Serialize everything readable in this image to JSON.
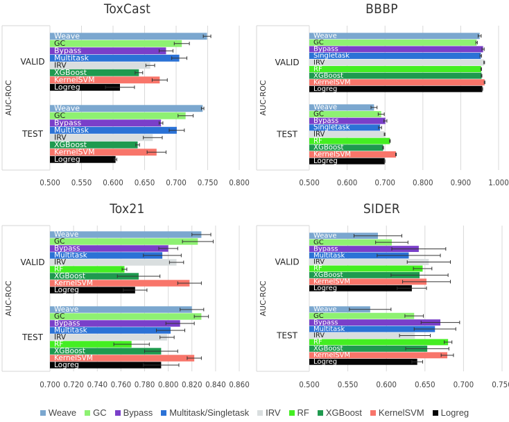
{
  "legend": [
    {
      "label": "Weave",
      "color": "#7ba7cf"
    },
    {
      "label": "GC",
      "color": "#8ef172"
    },
    {
      "label": "Bypass",
      "color": "#7a3fc9"
    },
    {
      "label": "Multitask/Singletask",
      "color": "#2b72d6"
    },
    {
      "label": "IRV",
      "color": "#d9dedf"
    },
    {
      "label": "RF",
      "color": "#44ee22"
    },
    {
      "label": "XGBoost",
      "color": "#1f9a4f"
    },
    {
      "label": "KernelSVM",
      "color": "#f8756a"
    },
    {
      "label": "Logreg",
      "color": "#050505"
    }
  ],
  "chart_data": [
    {
      "type": "bar",
      "orientation": "horizontal",
      "title": "ToxCast",
      "ylabel": "AUC-ROC",
      "xlabel": "",
      "xlim": [
        0.5,
        0.8
      ],
      "xticks": [
        "0.500",
        "0.550",
        "0.600",
        "0.650",
        "0.700",
        "0.750",
        "0.800"
      ],
      "grid": true,
      "groups": [
        {
          "name": "VALID",
          "bars": [
            {
              "label": "Weave",
              "value": 0.749,
              "error": 0.006
            },
            {
              "label": "GC",
              "value": 0.709,
              "error": 0.012
            },
            {
              "label": "Bypass",
              "value": 0.684,
              "error": 0.011
            },
            {
              "label": "Multitask",
              "value": 0.705,
              "error": 0.012
            },
            {
              "label": "IRV",
              "value": 0.659,
              "error": 0.007
            },
            {
              "label": "XGBoost",
              "value": 0.641,
              "error": 0.006
            },
            {
              "label": "KernelSVM",
              "value": 0.674,
              "error": 0.012
            },
            {
              "label": "Logreg",
              "value": 0.611,
              "error": 0.023
            }
          ]
        },
        {
          "name": "TEST",
          "bars": [
            {
              "label": "Weave",
              "value": 0.742,
              "error": 0.002
            },
            {
              "label": "GC",
              "value": 0.715,
              "error": 0.012
            },
            {
              "label": "Bypass",
              "value": 0.676,
              "error": 0.003
            },
            {
              "label": "Multitask",
              "value": 0.701,
              "error": 0.012
            },
            {
              "label": "IRV",
              "value": 0.663,
              "error": 0.015
            },
            {
              "label": "XGBoost",
              "value": 0.639,
              "error": 0.003
            },
            {
              "label": "KernelSVM",
              "value": 0.669,
              "error": 0.015
            },
            {
              "label": "Logreg",
              "value": 0.604,
              "error": 0.002
            }
          ]
        }
      ]
    },
    {
      "type": "bar",
      "orientation": "horizontal",
      "title": "BBBP",
      "ylabel": "AUC-ROC",
      "xlabel": "",
      "xlim": [
        0.5,
        1.0
      ],
      "xticks": [
        "0.500",
        "0.600",
        "0.700",
        "0.800",
        "0.900",
        "1.000"
      ],
      "grid": true,
      "groups": [
        {
          "name": "VALID",
          "bars": [
            {
              "label": "Weave",
              "value": 0.95,
              "error": 0.004
            },
            {
              "label": "GC",
              "value": 0.942,
              "error": 0.002
            },
            {
              "label": "Bypass",
              "value": 0.959,
              "error": 0.003
            },
            {
              "label": "Singletask",
              "value": 0.953,
              "error": 0.002
            },
            {
              "label": "IRV",
              "value": 0.962,
              "error": 0.001
            },
            {
              "label": "RF",
              "value": 0.954,
              "error": 0.001
            },
            {
              "label": "XGBoost",
              "value": 0.955,
              "error": 0.001
            },
            {
              "label": "KernelSVM",
              "value": 0.963,
              "error": 0.001
            },
            {
              "label": "Logreg",
              "value": 0.957,
              "error": 0.001
            }
          ]
        },
        {
          "name": "TEST",
          "bars": [
            {
              "label": "Weave",
              "value": 0.671,
              "error": 0.008
            },
            {
              "label": "GC",
              "value": 0.69,
              "error": 0.008
            },
            {
              "label": "Bypass",
              "value": 0.701,
              "error": 0.004
            },
            {
              "label": "Singletask",
              "value": 0.687,
              "error": 0.004
            },
            {
              "label": "IRV",
              "value": 0.699,
              "error": 0.001
            },
            {
              "label": "RF",
              "value": 0.713,
              "error": 0.001
            },
            {
              "label": "XGBoost",
              "value": 0.695,
              "error": 0.001
            },
            {
              "label": "KernelSVM",
              "value": 0.729,
              "error": 0.001
            },
            {
              "label": "Logreg",
              "value": 0.699,
              "error": 0.001
            }
          ]
        }
      ]
    },
    {
      "type": "bar",
      "orientation": "horizontal",
      "title": "Tox21",
      "ylabel": "AUC-ROC",
      "xlabel": "",
      "xlim": [
        0.7,
        0.86
      ],
      "xticks": [
        "0.700",
        "0.720",
        "0.740",
        "0.760",
        "0.780",
        "0.800",
        "0.820",
        "0.840",
        "0.860"
      ],
      "grid": true,
      "groups": [
        {
          "name": "VALID",
          "bars": [
            {
              "label": "Weave",
              "value": 0.828,
              "error": 0.008
            },
            {
              "label": "GC",
              "value": 0.825,
              "error": 0.013
            },
            {
              "label": "Bypass",
              "value": 0.8,
              "error": 0.008
            },
            {
              "label": "Multitask",
              "value": 0.795,
              "error": 0.016
            },
            {
              "label": "IRV",
              "value": 0.807,
              "error": 0.006
            },
            {
              "label": "RF",
              "value": 0.763,
              "error": 0.002
            },
            {
              "label": "XGBoost",
              "value": 0.775,
              "error": 0.018
            },
            {
              "label": "KernelSVM",
              "value": 0.818,
              "error": 0.01
            },
            {
              "label": "Logreg",
              "value": 0.772,
              "error": 0.01
            }
          ]
        },
        {
          "name": "TEST",
          "bars": [
            {
              "label": "Weave",
              "value": 0.82,
              "error": 0.01
            },
            {
              "label": "GC",
              "value": 0.828,
              "error": 0.006
            },
            {
              "label": "Bypass",
              "value": 0.81,
              "error": 0.012
            },
            {
              "label": "Multitask",
              "value": 0.802,
              "error": 0.012
            },
            {
              "label": "IRV",
              "value": 0.799,
              "error": 0.006
            },
            {
              "label": "RF",
              "value": 0.769,
              "error": 0.015
            },
            {
              "label": "XGBoost",
              "value": 0.794,
              "error": 0.014
            },
            {
              "label": "KernelSVM",
              "value": 0.822,
              "error": 0.006
            },
            {
              "label": "Logreg",
              "value": 0.794,
              "error": 0.015
            }
          ]
        }
      ]
    },
    {
      "type": "bar",
      "orientation": "horizontal",
      "title": "SIDER",
      "ylabel": "AUC-ROC",
      "xlabel": "",
      "xlim": [
        0.5,
        0.75
      ],
      "xticks": [
        "0.500",
        "0.550",
        "0.600",
        "0.650",
        "0.700",
        "0.750"
      ],
      "grid": true,
      "groups": [
        {
          "name": "VALID",
          "bars": [
            {
              "label": "Weave",
              "value": 0.589,
              "error": 0.031
            },
            {
              "label": "GC",
              "value": 0.607,
              "error": 0.021
            },
            {
              "label": "Bypass",
              "value": 0.642,
              "error": 0.035
            },
            {
              "label": "Multitask",
              "value": 0.629,
              "error": 0.041
            },
            {
              "label": "IRV",
              "value": 0.655,
              "error": 0.028
            },
            {
              "label": "RF",
              "value": 0.647,
              "error": 0.012
            },
            {
              "label": "XGBoost",
              "value": 0.643,
              "error": 0.037
            },
            {
              "label": "KernelSVM",
              "value": 0.652,
              "error": 0.031
            },
            {
              "label": "Logreg",
              "value": 0.633,
              "error": 0.019
            }
          ]
        },
        {
          "name": "TEST",
          "bars": [
            {
              "label": "Weave",
              "value": 0.579,
              "error": 0.027
            },
            {
              "label": "GC",
              "value": 0.636,
              "error": 0.012
            },
            {
              "label": "Bypass",
              "value": 0.67,
              "error": 0.025
            },
            {
              "label": "Multitask",
              "value": 0.663,
              "error": 0.027
            },
            {
              "label": "IRV",
              "value": 0.637,
              "error": 0.02
            },
            {
              "label": "RF",
              "value": 0.68,
              "error": 0.005
            },
            {
              "label": "XGBoost",
              "value": 0.653,
              "error": 0.028
            },
            {
              "label": "KernelSVM",
              "value": 0.679,
              "error": 0.008
            },
            {
              "label": "Logreg",
              "value": 0.64,
              "error": 0.007
            }
          ]
        }
      ]
    }
  ]
}
